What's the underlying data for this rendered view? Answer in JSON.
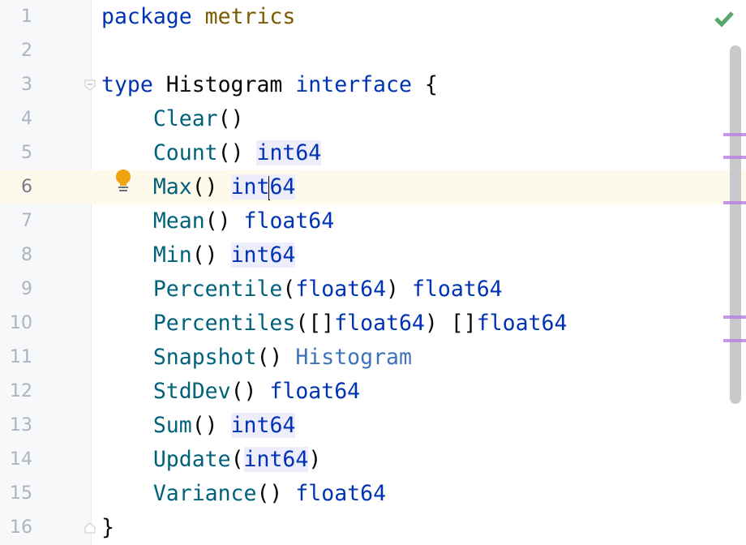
{
  "editor": {
    "current_line": 6,
    "inspection_status": "no-problems-check-icon",
    "colors": {
      "keyword": "#0033b3",
      "function": "#00627a",
      "package": "#7a5b00",
      "usage_highlight": "#ededfc",
      "current_line": "#fdfaeb",
      "marker": "#b57ee0",
      "check": "#59a869"
    },
    "lines": [
      {
        "n": "1",
        "tokens": [
          {
            "t": "package",
            "c": "kw"
          },
          {
            "t": " "
          },
          {
            "t": "metrics",
            "c": "pkg"
          }
        ]
      },
      {
        "n": "2",
        "tokens": []
      },
      {
        "n": "3",
        "tokens": [
          {
            "t": "type",
            "c": "kw"
          },
          {
            "t": " Histogram "
          },
          {
            "t": "interface",
            "c": "kw"
          },
          {
            "t": " {"
          }
        ]
      },
      {
        "n": "4",
        "tokens": [
          {
            "t": "    "
          },
          {
            "t": "Clear",
            "c": "fn"
          },
          {
            "t": "()"
          }
        ]
      },
      {
        "n": "5",
        "tokens": [
          {
            "t": "    "
          },
          {
            "t": "Count",
            "c": "fn"
          },
          {
            "t": "() "
          },
          {
            "t": "int64",
            "c": "ty hl"
          }
        ]
      },
      {
        "n": "6",
        "tokens": [
          {
            "t": "    "
          },
          {
            "t": "Max",
            "c": "fn"
          },
          {
            "t": "() "
          },
          {
            "t": "int",
            "c": "ty hl"
          },
          {
            "caret": true
          },
          {
            "t": "64",
            "c": "ty hl"
          }
        ]
      },
      {
        "n": "7",
        "tokens": [
          {
            "t": "    "
          },
          {
            "t": "Mean",
            "c": "fn"
          },
          {
            "t": "() "
          },
          {
            "t": "float64",
            "c": "ty"
          }
        ]
      },
      {
        "n": "8",
        "tokens": [
          {
            "t": "    "
          },
          {
            "t": "Min",
            "c": "fn"
          },
          {
            "t": "() "
          },
          {
            "t": "int64",
            "c": "ty hl"
          }
        ]
      },
      {
        "n": "9",
        "tokens": [
          {
            "t": "    "
          },
          {
            "t": "Percentile",
            "c": "fn"
          },
          {
            "t": "("
          },
          {
            "t": "float64",
            "c": "ty"
          },
          {
            "t": ") "
          },
          {
            "t": "float64",
            "c": "ty"
          }
        ]
      },
      {
        "n": "10",
        "tokens": [
          {
            "t": "    "
          },
          {
            "t": "Percentiles",
            "c": "fn"
          },
          {
            "t": "([]"
          },
          {
            "t": "float64",
            "c": "ty"
          },
          {
            "t": ") []"
          },
          {
            "t": "float64",
            "c": "ty"
          }
        ]
      },
      {
        "n": "11",
        "tokens": [
          {
            "t": "    "
          },
          {
            "t": "Snapshot",
            "c": "fn"
          },
          {
            "t": "() "
          },
          {
            "t": "Histogram",
            "c": "ty2"
          }
        ]
      },
      {
        "n": "12",
        "tokens": [
          {
            "t": "    "
          },
          {
            "t": "StdDev",
            "c": "fn"
          },
          {
            "t": "() "
          },
          {
            "t": "float64",
            "c": "ty"
          }
        ]
      },
      {
        "n": "13",
        "tokens": [
          {
            "t": "    "
          },
          {
            "t": "Sum",
            "c": "fn"
          },
          {
            "t": "() "
          },
          {
            "t": "int64",
            "c": "ty hl"
          }
        ]
      },
      {
        "n": "14",
        "tokens": [
          {
            "t": "    "
          },
          {
            "t": "Update",
            "c": "fn"
          },
          {
            "t": "("
          },
          {
            "t": "int64",
            "c": "ty hl"
          },
          {
            "t": ")"
          }
        ]
      },
      {
        "n": "15",
        "tokens": [
          {
            "t": "    "
          },
          {
            "t": "Variance",
            "c": "fn"
          },
          {
            "t": "() "
          },
          {
            "t": "float64",
            "c": "ty"
          }
        ]
      },
      {
        "n": "16",
        "tokens": [
          {
            "t": "}"
          }
        ]
      }
    ],
    "fold_lines": [
      3,
      16
    ],
    "marker_lines": [
      5,
      6,
      8,
      13,
      14
    ]
  }
}
